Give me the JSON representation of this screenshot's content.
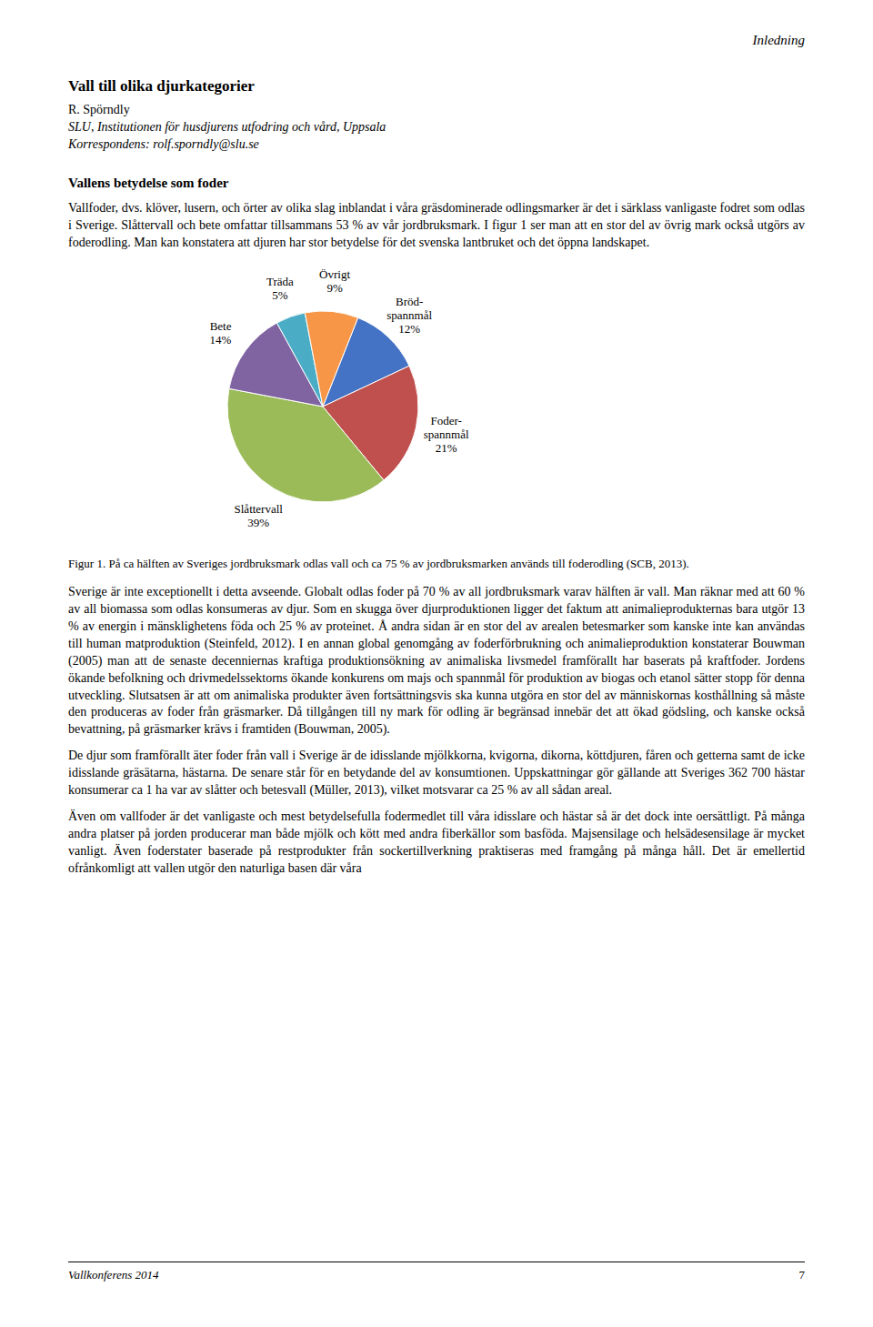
{
  "page": {
    "header": "Inledning",
    "article_title": "Vall till olika djurkategorier",
    "author": "R. Spörndly",
    "institution": "SLU, Institutionen för husdjurens utfodring och vård, Uppsala",
    "contact": "Korrespondens: rolf.sporndly@slu.se",
    "section_heading": "Vallens betydelse som foder",
    "body_before_chart": [
      "Vallfoder, dvs. klöver, lusern, och örter av olika slag inblandat i våra gräsdominerade odlingsmarker är det i särklass vanligaste fodret som odlas i Sverige. Slåttervall och bete omfattar tillsammans 53 % av vår jordbruksmark. I figur 1 ser man att en stor del av övrig mark också utgörs av foderodling. Man kan konstatera att djuren har stor betydelse för det svenska lantbruket och det öppna landskapet."
    ],
    "body_after_chart": [
      "Sverige är inte exceptionellt i detta avseende. Globalt odlas foder på 70 % av all jordbruksmark varav hälften är vall. Man räknar med att 60 % av all biomassa som odlas konsumeras av djur. Som en skugga över djurproduktionen ligger det faktum att animalieprodukternas bara utgör 13 % av energin i mänsklighetens föda och 25 % av proteinet. Å andra sidan är en stor del av arealen betesmarker som kanske inte kan användas till human matproduktion (Steinfeld, 2012). I en annan global genomgång av foderförbrukning och animalieproduktion konstaterar Bouwman (2005) man att de senaste decenniernas kraftiga produktionsökning av animaliska livsmedel framförallt har baserats på kraftfoder. Jordens ökande befolkning och drivmedelssektorns ökande konkurens om majs och spannmål för produktion av biogas och etanol sätter stopp för denna utveckling. Slutsatsen är att om animaliska produkter även fortsättningsvis ska kunna utgöra en stor del av människornas kosthållning så måste den produceras av foder från gräsmarker. Då tillgången till ny mark för odling är begränsad innebär det att ökad gödsling, och kanske också bevattning, på gräsmarker krävs i framtiden (Bouwman, 2005).",
      "De djur som framförallt äter foder från vall i Sverige är de idisslande mjölkkorna, kvigorna, dikorna, köttdjuren, fåren och getterna samt de icke idisslande gräsätarna, hästarna. De senare står för en betydande del av konsumtionen. Uppskattningar gör gällande att Sveriges 362 700 hästar konsumerar ca 1 ha var av slåtter och betesvall (Müller, 2013), vilket motsvarar ca 25 % av all sådan areal.",
      "Även om vallfoder är det vanligaste och mest betydelsefulla fodermedlet till våra idisslare och hästar så är det dock inte oersättligt. På många andra platser på jorden producerar man både mjölk och kött med andra fiberkällor som basföda. Majsensilage och helsädesensilage är mycket vanligt. Även foderstater baserade på restprodukter från sockertillverkning praktiseras med framgång på många håll. Det är emellertid ofrånkomligt att vallen utgör den naturliga basen där våra"
    ],
    "footer_left": "Vallkonferens 2014",
    "footer_right": "7"
  },
  "chart_data": {
    "type": "pie",
    "categories": [
      "Bröd-\nspannmål",
      "Foder-\nspannmål",
      "Slåttervall",
      "Bete",
      "Träda",
      "Övrigt"
    ],
    "values": [
      12,
      21,
      39,
      14,
      5,
      9
    ],
    "value_labels": [
      "12%",
      "21%",
      "39%",
      "14%",
      "5%",
      "9%"
    ],
    "colors": [
      "#4472C4",
      "#C0504D",
      "#9BBB59",
      "#8064A2",
      "#4BACC6",
      "#F79646"
    ],
    "data_labels": true,
    "annotations": [
      "Figur 1. På ca hälften av Sveriges jordbruksmark odlas vall och ca 75 % av jordbruksmarken används till foderodling (SCB, 2013)."
    ]
  }
}
